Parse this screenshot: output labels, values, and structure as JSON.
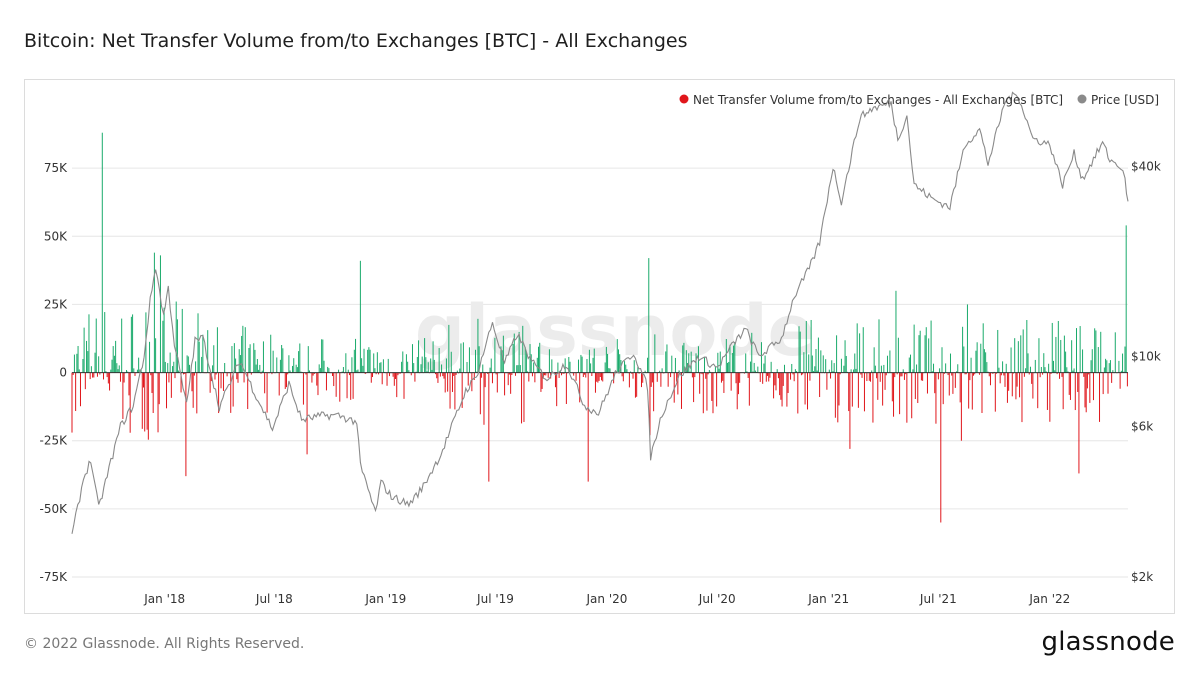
{
  "page_title": "Bitcoin: Net Transfer Volume from/to Exchanges [BTC] - All Exchanges",
  "footer": {
    "copyright": "© 2022 Glassnode. All Rights Reserved.",
    "brand": "glassnode"
  },
  "watermark": "glassnode",
  "colors": {
    "inflow": "#1aaa6b",
    "outflow": "#e0161b",
    "price": "#8a8a8a"
  },
  "chart_data": {
    "type": "bar",
    "title": "Bitcoin: Net Transfer Volume from/to Exchanges [BTC] - All Exchanges",
    "x_range": [
      "2017-08-01",
      "2022-05-10"
    ],
    "x_tick_labels": [
      {
        "label": "Jan '18",
        "date": "2018-01-01"
      },
      {
        "label": "Jul '18",
        "date": "2018-07-01"
      },
      {
        "label": "Jan '19",
        "date": "2019-01-01"
      },
      {
        "label": "Jul '19",
        "date": "2019-07-01"
      },
      {
        "label": "Jan '20",
        "date": "2020-01-01"
      },
      {
        "label": "Jul '20",
        "date": "2020-07-01"
      },
      {
        "label": "Jan '21",
        "date": "2021-01-01"
      },
      {
        "label": "Jul '21",
        "date": "2021-07-01"
      },
      {
        "label": "Jan '22",
        "date": "2022-01-01"
      }
    ],
    "y_left": {
      "range": [
        -75000,
        100000
      ],
      "ticks": [
        {
          "label": "75K",
          "value": 75000
        },
        {
          "label": "50K",
          "value": 50000
        },
        {
          "label": "25K",
          "value": 25000
        },
        {
          "label": "0",
          "value": 0
        },
        {
          "label": "-25K",
          "value": -25000
        },
        {
          "label": "-50K",
          "value": -50000
        },
        {
          "label": "-75K",
          "value": -75000
        }
      ]
    },
    "y_right": {
      "scale": "log",
      "range": [
        2000,
        65000
      ],
      "ticks": [
        {
          "label": "$40k",
          "value": 40000
        },
        {
          "label": "$10k",
          "value": 10000
        },
        {
          "label": "$6k",
          "value": 6000
        },
        {
          "label": "$2k",
          "value": 2000
        }
      ]
    },
    "legend_position": "top-right",
    "grid": "horizontal",
    "series": [
      {
        "name": "Net Transfer Volume from/to Exchanges - All Exchanges [BTC]",
        "color": "#e0161b",
        "type": "bar",
        "positive_color": "#1aaa6b",
        "negative_color": "#e0161b",
        "daily_volatility_schedule": [
          {
            "from": "2017-08-01",
            "to": "2018-03-01",
            "typical": 12000
          },
          {
            "from": "2018-03-01",
            "to": "2018-08-01",
            "typical": 8000
          },
          {
            "from": "2018-08-01",
            "to": "2019-04-01",
            "typical": 6000
          },
          {
            "from": "2019-04-01",
            "to": "2019-09-01",
            "typical": 9000
          },
          {
            "from": "2019-09-01",
            "to": "2020-03-01",
            "typical": 6000
          },
          {
            "from": "2020-03-01",
            "to": "2020-11-01",
            "typical": 7000
          },
          {
            "from": "2020-11-01",
            "to": "2022-05-10",
            "typical": 9000
          }
        ],
        "notable_spikes": [
          {
            "date": "2017-09-20",
            "value": 88000
          },
          {
            "date": "2017-12-15",
            "value": 44000
          },
          {
            "date": "2017-12-25",
            "value": 43000
          },
          {
            "date": "2018-02-05",
            "value": -38000
          },
          {
            "date": "2018-08-25",
            "value": -30000
          },
          {
            "date": "2018-11-20",
            "value": 41000
          },
          {
            "date": "2019-06-20",
            "value": -40000
          },
          {
            "date": "2019-12-02",
            "value": -40000
          },
          {
            "date": "2020-03-10",
            "value": 42000
          },
          {
            "date": "2020-03-13",
            "value": -23000
          },
          {
            "date": "2021-02-05",
            "value": -28000
          },
          {
            "date": "2021-04-22",
            "value": 30000
          },
          {
            "date": "2021-07-05",
            "value": -55000
          },
          {
            "date": "2021-08-08",
            "value": -25000
          },
          {
            "date": "2021-08-18",
            "value": 25000
          },
          {
            "date": "2022-02-18",
            "value": -37000
          },
          {
            "date": "2022-05-07",
            "value": 54000
          }
        ]
      },
      {
        "name": "Price [USD]",
        "color": "#8a8a8a",
        "type": "line",
        "points": [
          [
            "2017-08-01",
            2700
          ],
          [
            "2017-08-20",
            4100
          ],
          [
            "2017-09-01",
            4700
          ],
          [
            "2017-09-14",
            3300
          ],
          [
            "2017-10-01",
            4400
          ],
          [
            "2017-10-20",
            6000
          ],
          [
            "2017-11-10",
            7000
          ],
          [
            "2017-11-28",
            10000
          ],
          [
            "2017-12-08",
            15000
          ],
          [
            "2017-12-17",
            19300
          ],
          [
            "2017-12-30",
            13500
          ],
          [
            "2018-01-07",
            16500
          ],
          [
            "2018-01-17",
            11000
          ],
          [
            "2018-02-06",
            7000
          ],
          [
            "2018-02-20",
            11200
          ],
          [
            "2018-03-05",
            11500
          ],
          [
            "2018-04-01",
            6900
          ],
          [
            "2018-05-05",
            9700
          ],
          [
            "2018-06-01",
            7500
          ],
          [
            "2018-06-28",
            5900
          ],
          [
            "2018-07-25",
            8200
          ],
          [
            "2018-08-15",
            6300
          ],
          [
            "2018-09-20",
            6500
          ],
          [
            "2018-10-15",
            6500
          ],
          [
            "2018-11-14",
            6200
          ],
          [
            "2018-11-20",
            4500
          ],
          [
            "2018-12-15",
            3200
          ],
          [
            "2018-12-24",
            4000
          ],
          [
            "2019-01-10",
            3600
          ],
          [
            "2019-02-08",
            3400
          ],
          [
            "2019-03-01",
            3800
          ],
          [
            "2019-04-02",
            4900
          ],
          [
            "2019-05-13",
            7800
          ],
          [
            "2019-05-30",
            8600
          ],
          [
            "2019-06-26",
            12800
          ],
          [
            "2019-07-16",
            9500
          ],
          [
            "2019-08-06",
            11800
          ],
          [
            "2019-08-30",
            9600
          ],
          [
            "2019-09-24",
            8500
          ],
          [
            "2019-10-26",
            9500
          ],
          [
            "2019-11-25",
            7000
          ],
          [
            "2019-12-18",
            6600
          ],
          [
            "2020-01-15",
            8800
          ],
          [
            "2020-02-14",
            10300
          ],
          [
            "2020-03-08",
            8000
          ],
          [
            "2020-03-13",
            4800
          ],
          [
            "2020-04-01",
            6600
          ],
          [
            "2020-04-30",
            8700
          ],
          [
            "2020-06-01",
            10000
          ],
          [
            "2020-07-01",
            9200
          ],
          [
            "2020-07-28",
            11000
          ],
          [
            "2020-08-17",
            12200
          ],
          [
            "2020-09-08",
            10000
          ],
          [
            "2020-10-15",
            11400
          ],
          [
            "2020-11-05",
            15500
          ],
          [
            "2020-11-30",
            19000
          ],
          [
            "2020-12-17",
            23000
          ],
          [
            "2021-01-08",
            40000
          ],
          [
            "2021-01-22",
            31000
          ],
          [
            "2021-02-21",
            57000
          ],
          [
            "2021-03-13",
            61000
          ],
          [
            "2021-04-14",
            63500
          ],
          [
            "2021-04-25",
            49000
          ],
          [
            "2021-05-10",
            58000
          ],
          [
            "2021-05-22",
            35000
          ],
          [
            "2021-06-22",
            31500
          ],
          [
            "2021-07-20",
            29800
          ],
          [
            "2021-08-14",
            47000
          ],
          [
            "2021-09-07",
            52500
          ],
          [
            "2021-09-21",
            40800
          ],
          [
            "2021-10-20",
            65000
          ],
          [
            "2021-11-09",
            68000
          ],
          [
            "2021-12-04",
            49000
          ],
          [
            "2022-01-01",
            47000
          ],
          [
            "2022-01-22",
            35000
          ],
          [
            "2022-02-10",
            44000
          ],
          [
            "2022-02-24",
            36500
          ],
          [
            "2022-03-29",
            47500
          ],
          [
            "2022-04-10",
            42000
          ],
          [
            "2022-04-28",
            40000
          ],
          [
            "2022-05-05",
            36000
          ],
          [
            "2022-05-10",
            31000
          ]
        ]
      }
    ]
  }
}
